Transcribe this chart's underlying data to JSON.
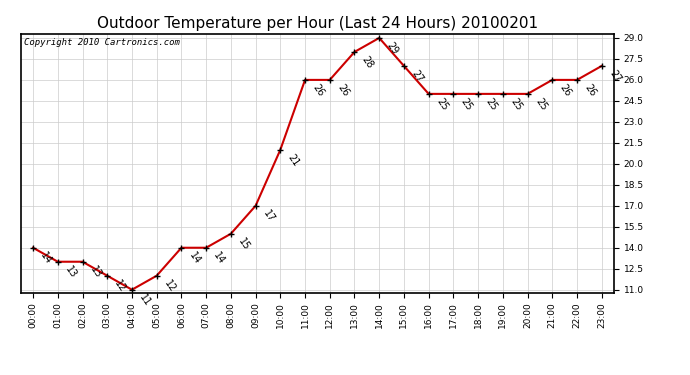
{
  "title": "Outdoor Temperature per Hour (Last 24 Hours) 20100201",
  "copyright": "Copyright 2010 Cartronics.com",
  "hours": [
    "00:00",
    "01:00",
    "02:00",
    "03:00",
    "04:00",
    "05:00",
    "06:00",
    "07:00",
    "08:00",
    "09:00",
    "10:00",
    "11:00",
    "12:00",
    "13:00",
    "14:00",
    "15:00",
    "16:00",
    "17:00",
    "18:00",
    "19:00",
    "20:00",
    "21:00",
    "22:00",
    "23:00"
  ],
  "values": [
    14,
    13,
    13,
    12,
    11,
    12,
    14,
    14,
    15,
    17,
    21,
    26,
    26,
    28,
    29,
    27,
    25,
    25,
    25,
    25,
    25,
    26,
    26,
    27
  ],
  "ylim_min": 10.8,
  "ylim_max": 29.3,
  "yticks": [
    11.0,
    12.5,
    14.0,
    15.5,
    17.0,
    18.5,
    20.0,
    21.5,
    23.0,
    24.5,
    26.0,
    27.5,
    29.0
  ],
  "line_color": "#cc0000",
  "marker_color": "#000000",
  "bg_color": "#ffffff",
  "grid_color": "#cccccc",
  "title_fontsize": 11,
  "copyright_fontsize": 6.5,
  "label_fontsize": 7,
  "tick_fontsize": 6.5
}
